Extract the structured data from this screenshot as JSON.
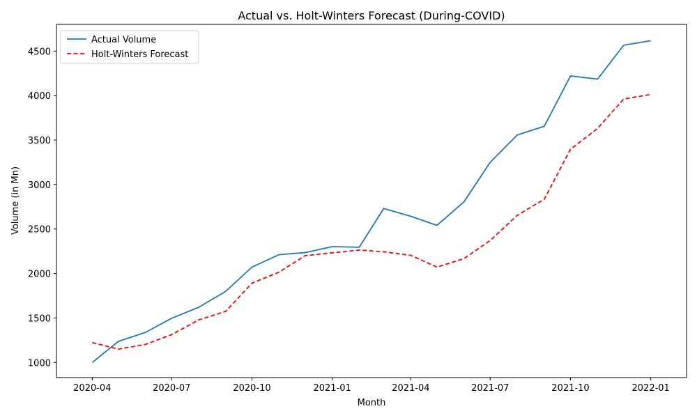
{
  "chart_data": {
    "type": "line",
    "title": "Actual vs. Holt-Winters Forecast (During-COVID)",
    "xlabel": "Month",
    "ylabel": "Volume (in Mn)",
    "x": [
      "2020-04-01",
      "2020-05-01",
      "2020-06-01",
      "2020-07-01",
      "2020-08-01",
      "2020-09-01",
      "2020-10-01",
      "2020-11-01",
      "2020-12-01",
      "2021-01-01",
      "2021-02-01",
      "2021-03-01",
      "2021-04-01",
      "2021-05-01",
      "2021-06-01",
      "2021-07-01",
      "2021-08-01",
      "2021-09-01",
      "2021-10-01",
      "2021-11-01",
      "2021-12-01",
      "2022-01-01"
    ],
    "x_ticks": [
      "2020-04",
      "2020-07",
      "2020-10",
      "2021-01",
      "2021-04",
      "2021-07",
      "2021-10",
      "2022-01"
    ],
    "y_ticks": [
      1000,
      1500,
      2000,
      2500,
      3000,
      3500,
      4000,
      4500
    ],
    "ylim": [
      830,
      4800
    ],
    "xlim": [
      "2020-02-20",
      "2022-02-11"
    ],
    "legend_position": "top-left",
    "grid": false,
    "series": [
      {
        "name": "Actual Volume",
        "color": "#1f77b4",
        "style": "solid",
        "values": [
          1000,
          1237,
          1338,
          1497,
          1620,
          1800,
          2072,
          2212,
          2235,
          2302,
          2295,
          2731,
          2643,
          2541,
          2806,
          3250,
          3557,
          3655,
          4220,
          4185,
          4566,
          4617
        ]
      },
      {
        "name": "Holt-Winters Forecast",
        "color": "#ff0000",
        "style": "dashed",
        "values": [
          1223,
          1150,
          1203,
          1313,
          1478,
          1575,
          1891,
          2015,
          2201,
          2232,
          2264,
          2244,
          2204,
          2072,
          2167,
          2371,
          2654,
          2835,
          3396,
          3630,
          3961,
          4013
        ]
      }
    ]
  }
}
